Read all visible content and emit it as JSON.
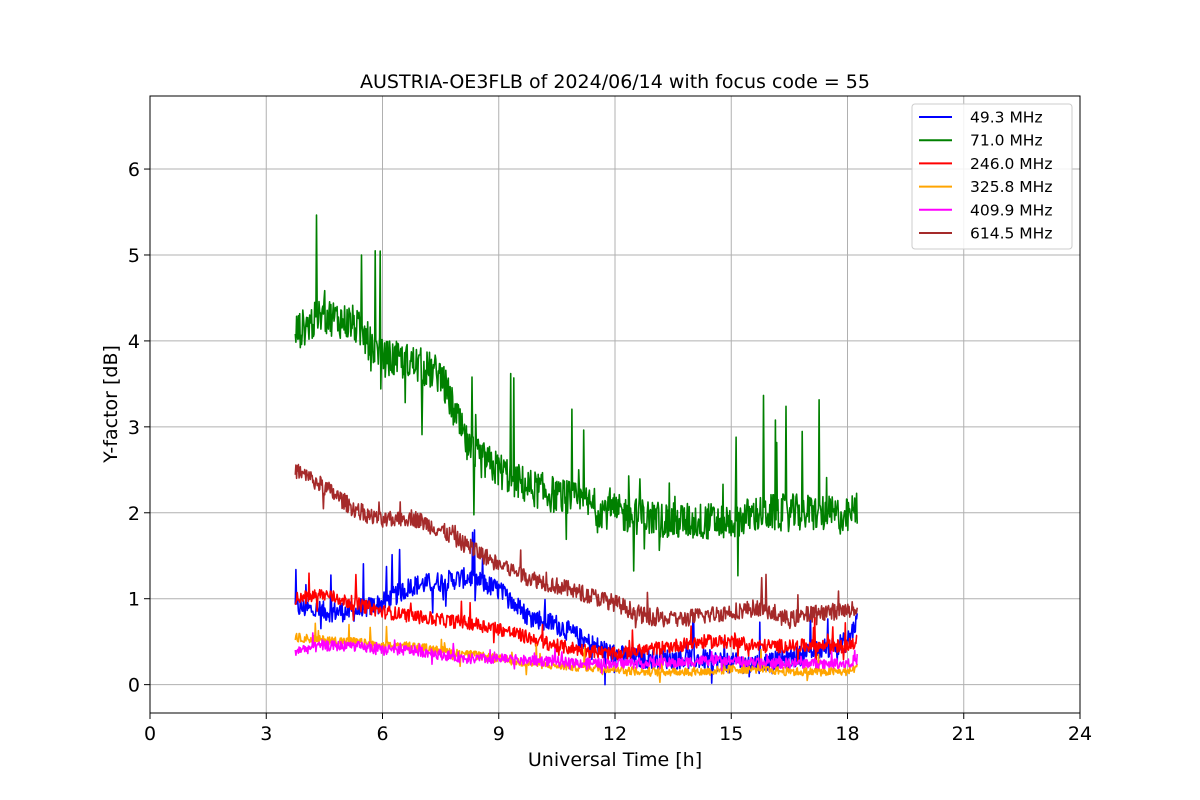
{
  "chart_data": {
    "type": "line",
    "title": "AUSTRIA-OE3FLB of 2024/06/14 with focus code = 55",
    "xlabel": "Universal Time [h]",
    "ylabel": "Y-factor [dB]",
    "xlim": [
      0,
      24
    ],
    "ylim": [
      -0.33,
      6.85
    ],
    "x_ticks": [
      "0",
      "3",
      "6",
      "9",
      "12",
      "15",
      "18",
      "21",
      "24"
    ],
    "y_ticks": [
      "0",
      "1",
      "2",
      "3",
      "4",
      "5",
      "6"
    ],
    "grid": true,
    "legend_position": "top-right",
    "x": [
      3.75,
      4.5,
      5.25,
      6.0,
      6.75,
      7.5,
      8.25,
      9.0,
      9.75,
      10.5,
      11.25,
      12.0,
      12.75,
      13.5,
      14.25,
      15.0,
      15.75,
      16.5,
      17.25,
      18.0,
      18.25
    ],
    "series": [
      {
        "name": " 49.3 MHz",
        "color": "#0000ff",
        "values": [
          0.9,
          0.85,
          0.85,
          0.95,
          1.15,
          1.2,
          1.25,
          1.1,
          0.8,
          0.7,
          0.5,
          0.35,
          0.3,
          0.3,
          0.3,
          0.25,
          0.25,
          0.3,
          0.4,
          0.5,
          0.75
        ]
      },
      {
        "name": " 71.0 MHz",
        "color": "#008000",
        "values": [
          4.1,
          4.3,
          4.2,
          3.8,
          3.75,
          3.6,
          2.7,
          2.5,
          2.3,
          2.2,
          2.1,
          2.0,
          1.95,
          1.9,
          1.9,
          1.9,
          2.0,
          2.0,
          2.0,
          1.95,
          2.05
        ]
      },
      {
        "name": "246.0 MHz",
        "color": "#ff0000",
        "values": [
          1.0,
          1.05,
          0.95,
          0.85,
          0.8,
          0.75,
          0.72,
          0.65,
          0.55,
          0.45,
          0.4,
          0.35,
          0.4,
          0.45,
          0.5,
          0.5,
          0.45,
          0.45,
          0.45,
          0.45,
          0.5
        ]
      },
      {
        "name": "325.8 MHz",
        "color": "#ffa500",
        "values": [
          0.55,
          0.52,
          0.5,
          0.45,
          0.45,
          0.4,
          0.35,
          0.3,
          0.25,
          0.22,
          0.2,
          0.18,
          0.15,
          0.15,
          0.15,
          0.18,
          0.18,
          0.15,
          0.15,
          0.15,
          0.2
        ]
      },
      {
        "name": "409.9 MHz",
        "color": "#ff00ff",
        "values": [
          0.4,
          0.45,
          0.45,
          0.4,
          0.4,
          0.35,
          0.3,
          0.3,
          0.28,
          0.27,
          0.25,
          0.25,
          0.25,
          0.25,
          0.28,
          0.28,
          0.25,
          0.25,
          0.25,
          0.25,
          0.3
        ]
      },
      {
        "name": "614.5 MHz",
        "color": "#a52a2a",
        "values": [
          2.5,
          2.3,
          2.05,
          1.9,
          1.95,
          1.8,
          1.6,
          1.4,
          1.25,
          1.15,
          1.05,
          0.95,
          0.8,
          0.75,
          0.8,
          0.85,
          0.9,
          0.75,
          0.85,
          0.85,
          0.9
        ]
      }
    ]
  }
}
